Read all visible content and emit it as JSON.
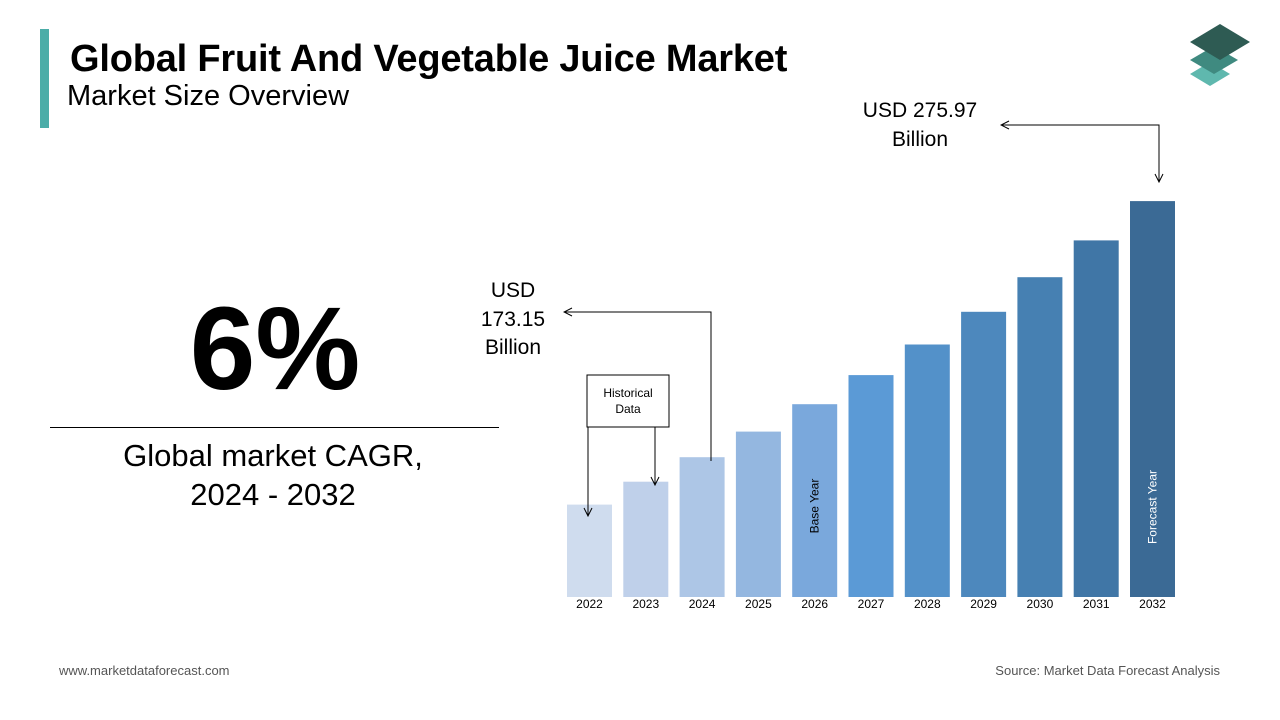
{
  "header": {
    "title": "Global Fruit And Vegetable Juice Market",
    "subtitle": "Market Size Overview"
  },
  "colors": {
    "accent": "#4bada8",
    "logo_top": "#2e5b53",
    "logo_mid": "#3f8a80",
    "logo_bottom": "#5fb8ae",
    "bars": [
      "#cfdcee",
      "#bfd0ea",
      "#adc6e6",
      "#94b7e0",
      "#7aa8dc",
      "#5b9ad6",
      "#5391c9",
      "#4d88bd",
      "#4680b2",
      "#4076a6",
      "#3b6a95"
    ]
  },
  "kpi": {
    "value": "6%",
    "label_line1": "Global market CAGR,",
    "label_line2": "2024 - 2032"
  },
  "callouts": {
    "start_value": [
      "USD",
      "173.15",
      "Billion"
    ],
    "end_value": [
      "USD 275.97",
      "Billion"
    ],
    "historical": [
      "Historical",
      "Data"
    ],
    "base_year": "Base Year",
    "forecast_year": "Forecast Year"
  },
  "chart_data": {
    "type": "bar",
    "title": "",
    "xlabel": "",
    "ylabel": "",
    "categories": [
      "2022",
      "2023",
      "2024",
      "2025",
      "2026",
      "2027",
      "2028",
      "2029",
      "2030",
      "2031",
      "2032"
    ],
    "values": [
      154.1,
      163.3,
      173.15,
      183.4,
      194.4,
      206.1,
      218.4,
      231.5,
      245.4,
      260.2,
      275.97
    ],
    "unit": "USD Billion",
    "ylim": [
      117,
      276
    ],
    "grid": false
  },
  "footer": {
    "website": "www.marketdataforecast.com",
    "source": "Source: Market Data Forecast Analysis"
  }
}
